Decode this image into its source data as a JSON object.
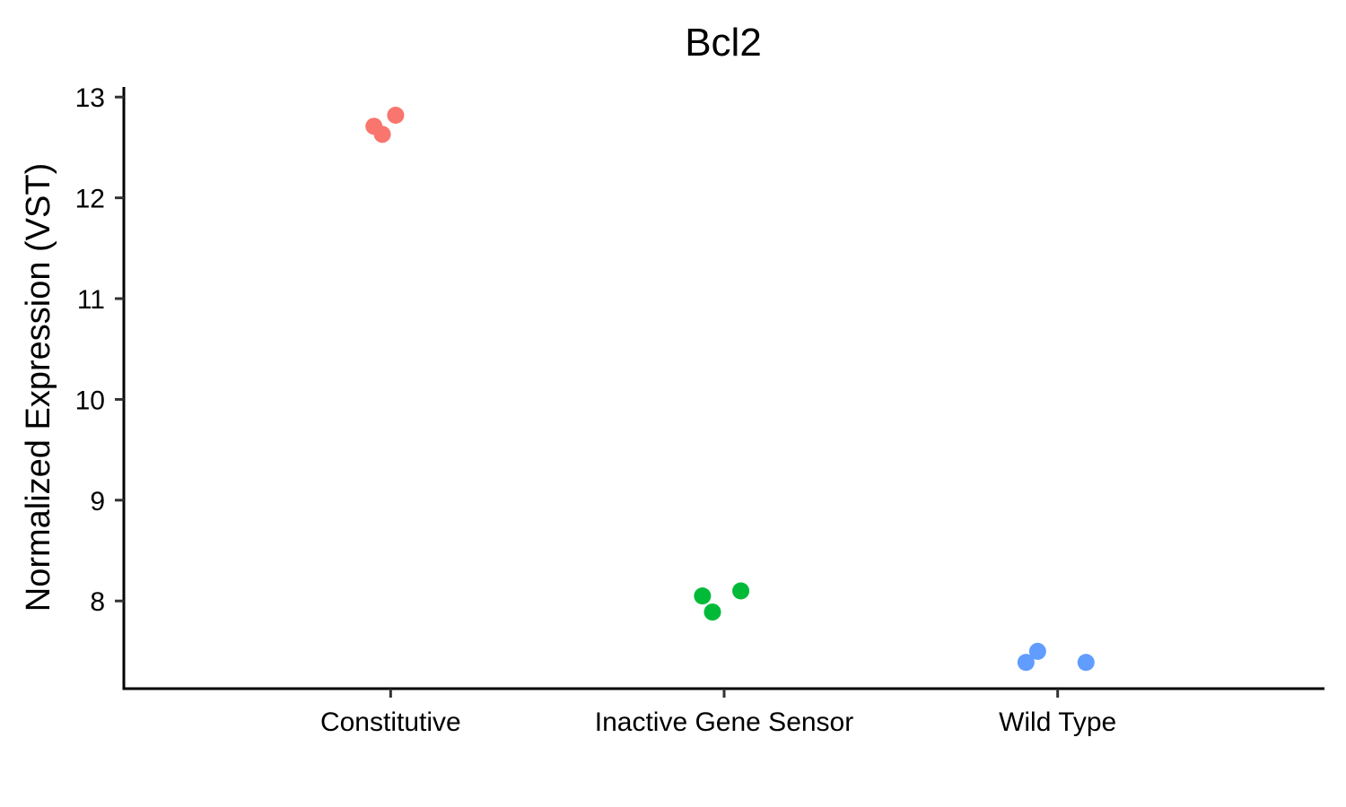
{
  "chart_data": {
    "type": "scatter",
    "title": "Bcl2",
    "xlabel": "",
    "ylabel": "Normalized Expression (VST)",
    "categories": [
      "Constitutive",
      "Inactive Gene Sensor",
      "Wild Type"
    ],
    "ylim": [
      7.13,
      13.1
    ],
    "yticks": [
      8,
      9,
      10,
      11,
      12,
      13
    ],
    "grid": false,
    "legend": "none",
    "series": [
      {
        "category": "Constitutive",
        "color": "#F8766D",
        "points": [
          {
            "x_offset": -0.05,
            "y": 12.71
          },
          {
            "x_offset": -0.025,
            "y": 12.63
          },
          {
            "x_offset": 0.015,
            "y": 12.82
          }
        ]
      },
      {
        "category": "Inactive Gene Sensor",
        "color": "#00BA38",
        "points": [
          {
            "x_offset": -0.065,
            "y": 8.05
          },
          {
            "x_offset": -0.035,
            "y": 7.89
          },
          {
            "x_offset": 0.05,
            "y": 8.1
          }
        ]
      },
      {
        "category": "Wild Type",
        "color": "#619CFF",
        "points": [
          {
            "x_offset": -0.095,
            "y": 7.39
          },
          {
            "x_offset": -0.06,
            "y": 7.5
          },
          {
            "x_offset": 0.085,
            "y": 7.39
          }
        ]
      }
    ]
  }
}
